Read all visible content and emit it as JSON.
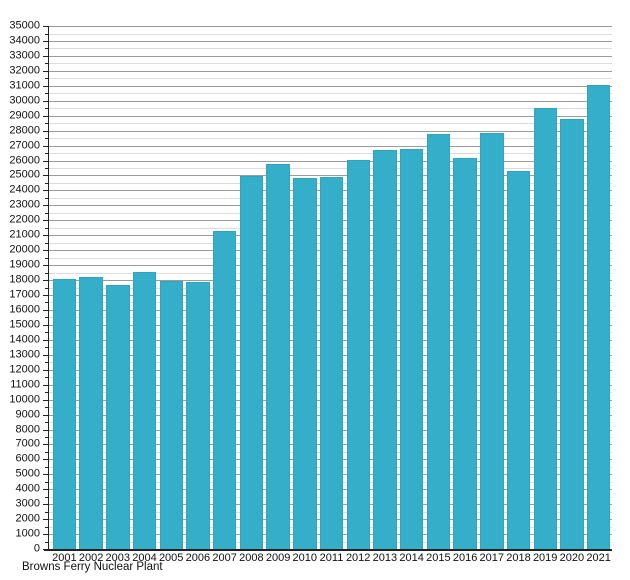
{
  "footer": {
    "label": "Browns Ferry Nuclear Plant"
  },
  "colors": {
    "bar_fill": "#35afc9",
    "bar_edge": "#2fa5bd",
    "grid_major": "#9b9b9b",
    "grid_minor": "#dcdcdc",
    "axis": "#222222",
    "text": "#111111"
  },
  "chart_data": {
    "type": "bar",
    "title": "",
    "xlabel": "",
    "ylabel": "",
    "footer_label": "Browns Ferry Nuclear Plant",
    "categories": [
      "2001",
      "2002",
      "2003",
      "2004",
      "2005",
      "2006",
      "2007",
      "2008",
      "2009",
      "2010",
      "2011",
      "2012",
      "2013",
      "2014",
      "2015",
      "2016",
      "2017",
      "2018",
      "2019",
      "2020",
      "2021"
    ],
    "values": [
      18100,
      18200,
      17700,
      18550,
      17950,
      17900,
      21300,
      24950,
      25800,
      24800,
      24900,
      26050,
      26700,
      26750,
      27750,
      26200,
      27850,
      25300,
      29500,
      28750,
      31050
    ],
    "ylim": [
      0,
      35000
    ],
    "y_major_interval": 1000,
    "y_minor_interval": 500,
    "y_tick_labels": [
      "0",
      "1000",
      "2000",
      "3000",
      "4000",
      "5000",
      "6000",
      "7000",
      "8000",
      "9000",
      "10000",
      "11000",
      "12000",
      "13000",
      "14000",
      "15000",
      "16000",
      "17000",
      "18000",
      "19000",
      "20000",
      "21000",
      "22000",
      "23000",
      "24000",
      "25000",
      "26000",
      "27000",
      "28000",
      "29000",
      "30000",
      "31000",
      "32000",
      "33000",
      "34000",
      "35000"
    ],
    "grid": true,
    "legend": false,
    "bar_color": "#35afc9"
  }
}
